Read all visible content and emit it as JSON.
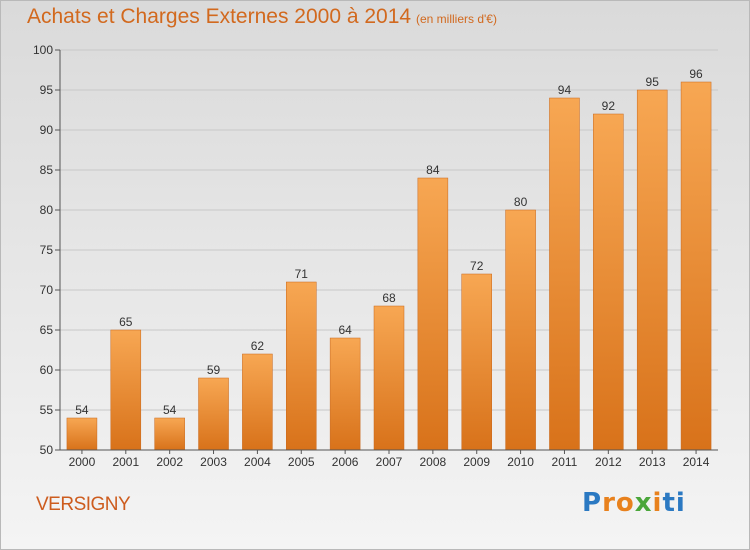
{
  "header": {
    "title": "Achats et Charges Externes 2000 à 2014",
    "subtitle": "(en milliers d'€)"
  },
  "footer": {
    "place": "VERSIGNY",
    "logo_letters": [
      "P",
      "r",
      "o",
      "x",
      "i",
      "ti"
    ]
  },
  "chart_data": {
    "type": "bar",
    "title": "Achats et Charges Externes 2000 à 2014",
    "subtitle": "(en milliers d'€)",
    "categories": [
      "2000",
      "2001",
      "2002",
      "2003",
      "2004",
      "2005",
      "2006",
      "2007",
      "2008",
      "2009",
      "2010",
      "2011",
      "2012",
      "2013",
      "2014"
    ],
    "values": [
      54,
      65,
      54,
      59,
      62,
      71,
      64,
      68,
      84,
      72,
      80,
      94,
      92,
      95,
      96
    ],
    "ylim": [
      50,
      100
    ],
    "yticks": [
      50,
      55,
      60,
      65,
      70,
      75,
      80,
      85,
      90,
      95,
      100
    ],
    "grid": "horizontal",
    "xlabel": "",
    "ylabel": "",
    "bar_color": "#f0912e"
  }
}
